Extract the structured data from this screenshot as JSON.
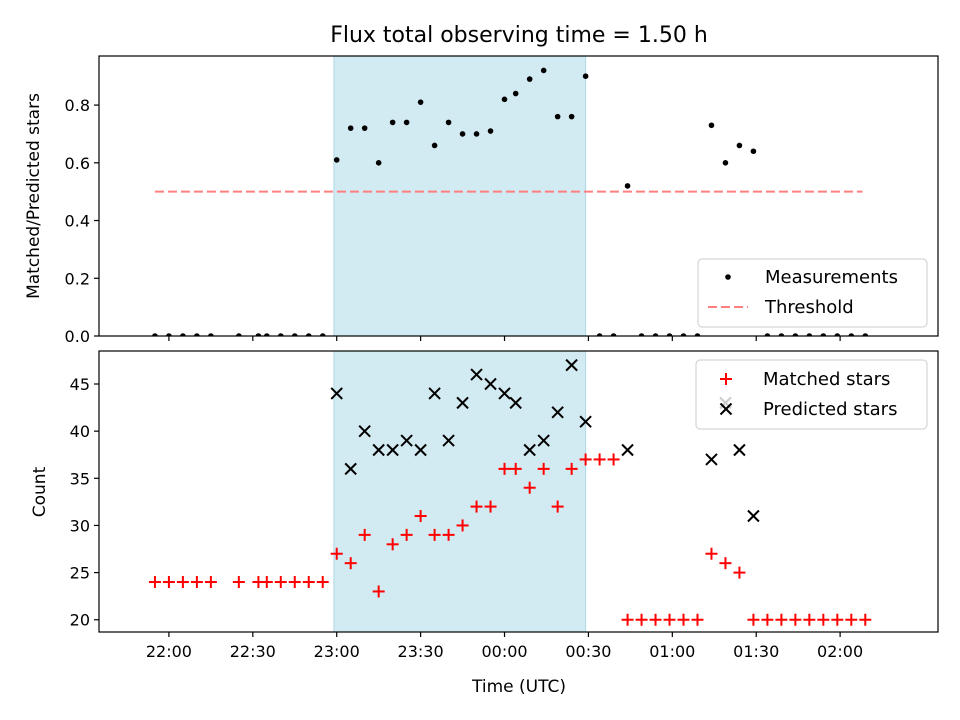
{
  "chart_data": [
    {
      "type": "scatter",
      "title": "Flux total observing time = 1.50 h",
      "ylabel": "Matched/Predicted stars",
      "xlim": [
        "21:35",
        "02:35"
      ],
      "ylim": [
        0,
        0.97
      ],
      "yticks": [
        0.0,
        0.2,
        0.4,
        0.6,
        0.8
      ],
      "ytick_labels": [
        "0.0",
        "0.2",
        "0.4",
        "0.6",
        "0.8"
      ],
      "grid": false,
      "legend_position": "lower-right",
      "shaded_interval": [
        "22:59",
        "00:29"
      ],
      "shade_color": "#add8e6",
      "series": [
        {
          "name": "Measurements",
          "marker": "dot",
          "color": "#000000",
          "points": [
            [
              "21:55",
              0
            ],
            [
              "22:00",
              0
            ],
            [
              "22:05",
              0
            ],
            [
              "22:10",
              0
            ],
            [
              "22:15",
              0
            ],
            [
              "22:25",
              0
            ],
            [
              "22:32",
              0
            ],
            [
              "22:35",
              0
            ],
            [
              "22:40",
              0
            ],
            [
              "22:45",
              0
            ],
            [
              "22:50",
              0
            ],
            [
              "22:55",
              0
            ],
            [
              "23:00",
              0.61
            ],
            [
              "23:05",
              0.72
            ],
            [
              "23:10",
              0.72
            ],
            [
              "23:15",
              0.6
            ],
            [
              "23:20",
              0.74
            ],
            [
              "23:25",
              0.74
            ],
            [
              "23:30",
              0.81
            ],
            [
              "23:35",
              0.66
            ],
            [
              "23:40",
              0.74
            ],
            [
              "23:45",
              0.7
            ],
            [
              "23:50",
              0.7
            ],
            [
              "23:55",
              0.71
            ],
            [
              "00:00",
              0.82
            ],
            [
              "00:04",
              0.84
            ],
            [
              "00:09",
              0.89
            ],
            [
              "00:14",
              0.92
            ],
            [
              "00:19",
              0.76
            ],
            [
              "00:24",
              0.76
            ],
            [
              "00:29",
              0.9
            ],
            [
              "00:34",
              0
            ],
            [
              "00:39",
              0
            ],
            [
              "00:44",
              0.52
            ],
            [
              "00:49",
              0
            ],
            [
              "00:54",
              0
            ],
            [
              "00:59",
              0
            ],
            [
              "01:04",
              0
            ],
            [
              "01:09",
              0
            ],
            [
              "01:14",
              0.73
            ],
            [
              "01:19",
              0.6
            ],
            [
              "01:24",
              0.66
            ],
            [
              "01:29",
              0.64
            ],
            [
              "01:34",
              0
            ],
            [
              "01:39",
              0
            ],
            [
              "01:44",
              0
            ],
            [
              "01:49",
              0
            ],
            [
              "01:54",
              0
            ],
            [
              "01:59",
              0
            ],
            [
              "02:04",
              0
            ],
            [
              "02:09",
              0
            ]
          ]
        },
        {
          "name": "Threshold",
          "marker": "dashed-line",
          "color": "#ff7f7f",
          "points": [
            [
              "21:55",
              0.5
            ],
            [
              "02:08",
              0.5
            ]
          ]
        }
      ]
    },
    {
      "type": "scatter",
      "xlabel": "Time (UTC)",
      "ylabel": "Count",
      "xlim": [
        "21:35",
        "02:35"
      ],
      "ylim": [
        18.7,
        48.5
      ],
      "yticks": [
        20,
        25,
        30,
        35,
        40,
        45
      ],
      "ytick_labels": [
        "20",
        "25",
        "30",
        "35",
        "40",
        "45"
      ],
      "xticks": [
        "22:00",
        "22:30",
        "23:00",
        "23:30",
        "00:00",
        "00:30",
        "01:00",
        "01:30",
        "02:00"
      ],
      "grid": false,
      "legend_position": "top-right",
      "shaded_interval": [
        "22:59",
        "00:29"
      ],
      "shade_color": "#add8e6",
      "series": [
        {
          "name": "Matched stars",
          "marker": "plus",
          "color": "#ff0000",
          "points": [
            [
              "21:55",
              24
            ],
            [
              "22:00",
              24
            ],
            [
              "22:05",
              24
            ],
            [
              "22:10",
              24
            ],
            [
              "22:15",
              24
            ],
            [
              "22:25",
              24
            ],
            [
              "22:32",
              24
            ],
            [
              "22:35",
              24
            ],
            [
              "22:40",
              24
            ],
            [
              "22:45",
              24
            ],
            [
              "22:50",
              24
            ],
            [
              "22:55",
              24
            ],
            [
              "23:00",
              27
            ],
            [
              "23:05",
              26
            ],
            [
              "23:10",
              29
            ],
            [
              "23:15",
              23
            ],
            [
              "23:20",
              28
            ],
            [
              "23:25",
              29
            ],
            [
              "23:30",
              31
            ],
            [
              "23:35",
              29
            ],
            [
              "23:40",
              29
            ],
            [
              "23:45",
              30
            ],
            [
              "23:50",
              32
            ],
            [
              "23:55",
              32
            ],
            [
              "00:00",
              36
            ],
            [
              "00:04",
              36
            ],
            [
              "00:09",
              34
            ],
            [
              "00:14",
              36
            ],
            [
              "00:19",
              32
            ],
            [
              "00:24",
              36
            ],
            [
              "00:29",
              37
            ],
            [
              "00:34",
              37
            ],
            [
              "00:39",
              37
            ],
            [
              "00:44",
              20
            ],
            [
              "00:49",
              20
            ],
            [
              "00:54",
              20
            ],
            [
              "00:59",
              20
            ],
            [
              "01:04",
              20
            ],
            [
              "01:09",
              20
            ],
            [
              "01:14",
              27
            ],
            [
              "01:19",
              26
            ],
            [
              "01:24",
              25
            ],
            [
              "01:29",
              20
            ],
            [
              "01:34",
              20
            ],
            [
              "01:39",
              20
            ],
            [
              "01:44",
              20
            ],
            [
              "01:49",
              20
            ],
            [
              "01:54",
              20
            ],
            [
              "01:59",
              20
            ],
            [
              "02:04",
              20
            ],
            [
              "02:09",
              20
            ]
          ]
        },
        {
          "name": "Predicted stars",
          "marker": "x",
          "color": "#000000",
          "points": [
            [
              "23:00",
              44
            ],
            [
              "23:05",
              36
            ],
            [
              "23:10",
              40
            ],
            [
              "23:15",
              38
            ],
            [
              "23:20",
              38
            ],
            [
              "23:25",
              39
            ],
            [
              "23:30",
              38
            ],
            [
              "23:35",
              44
            ],
            [
              "23:40",
              39
            ],
            [
              "23:45",
              43
            ],
            [
              "23:50",
              46
            ],
            [
              "23:55",
              45
            ],
            [
              "00:00",
              44
            ],
            [
              "00:04",
              43
            ],
            [
              "00:09",
              38
            ],
            [
              "00:14",
              39
            ],
            [
              "00:19",
              42
            ],
            [
              "00:24",
              47
            ],
            [
              "00:29",
              41
            ],
            [
              "00:44",
              38
            ],
            [
              "01:14",
              37
            ],
            [
              "01:19",
              43
            ],
            [
              "01:24",
              38
            ],
            [
              "01:29",
              31
            ]
          ]
        }
      ]
    }
  ]
}
